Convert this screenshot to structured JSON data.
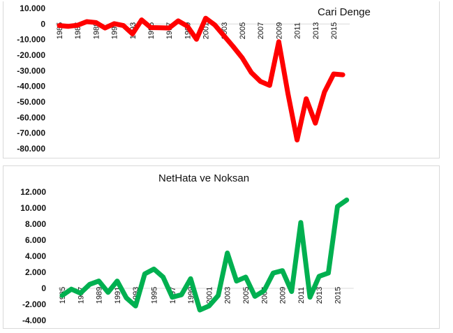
{
  "chart_data": [
    {
      "type": "line",
      "title": "Cari Denge",
      "color": "#ff0000",
      "x": [
        1985,
        1986,
        1987,
        1988,
        1989,
        1990,
        1991,
        1992,
        1993,
        1994,
        1995,
        1996,
        1997,
        1998,
        1999,
        2000,
        2001,
        2002,
        2003,
        2004,
        2005,
        2006,
        2007,
        2008,
        2009,
        2010,
        2011,
        2012,
        2013,
        2014,
        2015,
        2016
      ],
      "values": [
        -1000,
        -1500,
        -800,
        1500,
        900,
        -2600,
        200,
        -1000,
        -6400,
        2600,
        -2300,
        -2400,
        -2600,
        2000,
        -1400,
        -9800,
        3700,
        -600,
        -7500,
        -14400,
        -21700,
        -31200,
        -36900,
        -39400,
        -11400,
        -44600,
        -74400,
        -48000,
        -63600,
        -43600,
        -32100,
        -32600
      ],
      "xticks": [
        "1985",
        "1987",
        "1989",
        "1991",
        "1993",
        "1995",
        "1997",
        "1999",
        "2001",
        "2003",
        "2005",
        "2007",
        "2009",
        "2011",
        "2013",
        "2015"
      ],
      "yticks": [
        "10.000",
        "0",
        "-10.000",
        "-20.000",
        "-30.000",
        "-40.000",
        "-50.000",
        "-60.000",
        "-70.000",
        "-80.000"
      ],
      "ylim": [
        -80000,
        10000
      ]
    },
    {
      "type": "line",
      "title": "NetHata ve Noksan",
      "color": "#00b050",
      "x": [
        1985,
        1986,
        1987,
        1988,
        1989,
        1990,
        1991,
        1992,
        1993,
        1994,
        1995,
        1996,
        1997,
        1998,
        1999,
        2000,
        2001,
        2002,
        2003,
        2004,
        2005,
        2006,
        2007,
        2008,
        2009,
        2010,
        2011,
        2012,
        2013,
        2014,
        2015,
        2016
      ],
      "values": [
        -900,
        -100,
        -600,
        500,
        900,
        -500,
        900,
        -1200,
        -2200,
        1800,
        2400,
        1400,
        -1100,
        -800,
        1200,
        -2700,
        -2200,
        -900,
        4400,
        900,
        1400,
        -1000,
        -300,
        1900,
        2200,
        -400,
        8200,
        -1100,
        1500,
        1900,
        10200,
        11000
      ],
      "xticks": [
        "1985",
        "1987",
        "1989",
        "1991",
        "1993",
        "1995",
        "1997",
        "1999",
        "2001",
        "2003",
        "2005",
        "2007",
        "2009",
        "2011",
        "2013",
        "2015"
      ],
      "yticks": [
        "12.000",
        "10.000",
        "8.000",
        "6.000",
        "4.000",
        "2.000",
        "0",
        "-2.000",
        "-4.000"
      ],
      "ylim": [
        -4000,
        12000
      ]
    }
  ]
}
